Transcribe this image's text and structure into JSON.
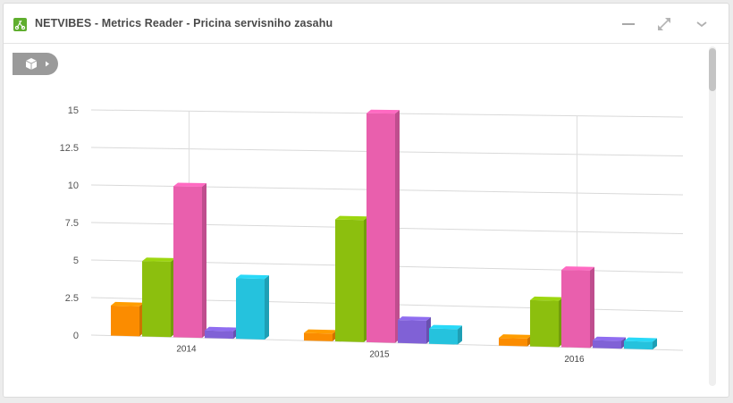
{
  "widget": {
    "title": "NETVIBES - Metrics Reader - Pricina servisniho zasahu"
  },
  "icons": {
    "app": "netvibes-logo-icon",
    "minimize": "minimize-icon",
    "expand": "expand-icon",
    "collapse": "chevron-down-icon",
    "toggle": "cube-icon",
    "toggle_arrow": "play-arrow-icon"
  },
  "colors": {
    "accent": "#5fae2e",
    "series": [
      "#fb8c00",
      "#8cbf0e",
      "#e95fad",
      "#8061d6",
      "#25c2dd"
    ]
  },
  "chart_data": {
    "type": "bar",
    "title": "",
    "xlabel": "",
    "ylabel": "",
    "categories": [
      "2014",
      "2015",
      "2016"
    ],
    "series": [
      {
        "values": [
          2,
          0.5,
          0.5
        ]
      },
      {
        "values": [
          5,
          8,
          3
        ]
      },
      {
        "values": [
          10,
          15,
          5
        ]
      },
      {
        "values": [
          0.5,
          1.5,
          0.5
        ]
      },
      {
        "values": [
          4,
          1,
          0.5
        ]
      }
    ],
    "ylim": [
      0,
      15
    ],
    "yticks": [
      "0",
      "2.5",
      "5",
      "7.5",
      "10",
      "12.5",
      "15"
    ],
    "ytick_values": [
      0,
      2.5,
      5,
      7.5,
      10,
      12.5,
      15
    ],
    "grid": true,
    "legend": "none",
    "style": "3d"
  }
}
